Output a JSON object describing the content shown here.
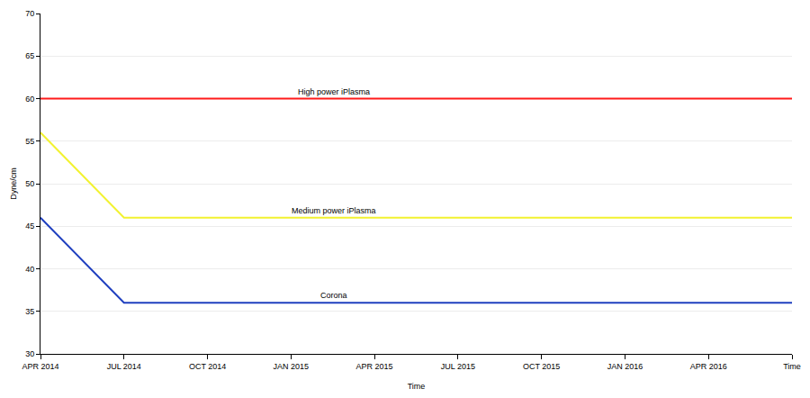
{
  "chart_data": {
    "type": "line",
    "xlabel": "Time",
    "ylabel": "Dyne/cm",
    "categories": [
      "APR 2014",
      "JUL 2014",
      "OCT 2014",
      "JAN 2015",
      "APR 2015",
      "JUL 2015",
      "OCT 2015",
      "JAN 2016",
      "APR 2016",
      "Time"
    ],
    "series": [
      {
        "name": "High power iPlasma",
        "color": "#ff1a1a",
        "values": [
          60,
          60,
          60,
          60,
          60,
          60,
          60,
          60,
          60,
          60
        ]
      },
      {
        "name": "Medium power iPlasma",
        "color": "#f2f230",
        "values": [
          56,
          46,
          46,
          46,
          46,
          46,
          46,
          46,
          46,
          46
        ]
      },
      {
        "name": "Corona",
        "color": "#1f3fbf",
        "values": [
          46,
          36,
          36,
          36,
          36,
          36,
          36,
          36,
          36,
          36
        ]
      }
    ],
    "ylim": [
      30,
      70
    ],
    "yticks": [
      30,
      35,
      40,
      45,
      50,
      55,
      60,
      65,
      70
    ],
    "grid": true
  }
}
